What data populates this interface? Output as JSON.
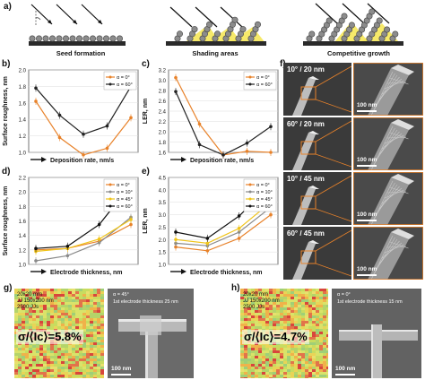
{
  "panels": {
    "a": "a)",
    "b": "b)",
    "c": "c)",
    "d": "d)",
    "e": "e)",
    "f": "f)",
    "g": "g)",
    "h": "h)"
  },
  "schematics": {
    "captions": [
      "Seed formation",
      "Shading areas",
      "Competitive growth"
    ],
    "alpha_label": "α"
  },
  "charts": {
    "b": {
      "type": "line",
      "ylabel": "Surface roughness, nm",
      "xlabel": "Deposition rate, nm/s",
      "ylim": [
        1.0,
        2.0
      ],
      "yticks": [
        "1.0",
        "1.2",
        "1.4",
        "1.6",
        "1.8",
        "2.0"
      ],
      "series": [
        {
          "name": "α = 0°",
          "color": "#e8822a",
          "values": [
            1.62,
            1.18,
            0.97,
            1.05,
            1.42
          ]
        },
        {
          "name": "α = 60°",
          "color": "#222222",
          "values": [
            1.78,
            1.45,
            1.22,
            1.32,
            1.8
          ]
        }
      ]
    },
    "c": {
      "type": "line",
      "ylabel": "LER, nm",
      "xlabel": "Deposition rate, nm/s",
      "ylim": [
        1.6,
        3.2
      ],
      "yticks": [
        "1.6",
        "1.8",
        "2.0",
        "2.2",
        "2.4",
        "2.6",
        "2.8",
        "3.0",
        "3.2"
      ],
      "series": [
        {
          "name": "α = 0°",
          "color": "#e8822a",
          "values": [
            3.05,
            2.15,
            1.55,
            1.62,
            1.6
          ]
        },
        {
          "name": "α = 60°",
          "color": "#222222",
          "values": [
            2.78,
            1.75,
            1.55,
            1.78,
            2.1
          ]
        }
      ]
    },
    "d": {
      "type": "line",
      "ylabel": "Surface roughness, nm",
      "xlabel": "Electrode thickness, nm",
      "ylim": [
        1.0,
        2.2
      ],
      "yticks": [
        "1.0",
        "1.2",
        "1.4",
        "1.6",
        "1.8",
        "2.0",
        "2.2"
      ],
      "series": [
        {
          "name": "α = 0°",
          "color": "#e8822a",
          "values": [
            1.2,
            1.22,
            1.32,
            1.55
          ]
        },
        {
          "name": "α = 10°",
          "color": "#8a8a8a",
          "values": [
            1.05,
            1.12,
            1.3,
            1.65
          ]
        },
        {
          "name": "α = 45°",
          "color": "#f0c419",
          "values": [
            1.18,
            1.22,
            1.35,
            1.62
          ]
        },
        {
          "name": "α = 60°",
          "color": "#111111",
          "values": [
            1.22,
            1.25,
            1.55,
            2.1
          ]
        }
      ]
    },
    "e": {
      "type": "line",
      "ylabel": "LER, nm",
      "xlabel": "Electrode thickness, nm",
      "ylim": [
        1.0,
        4.5
      ],
      "yticks": [
        "1.0",
        "1.5",
        "2.0",
        "2.5",
        "3.0",
        "3.5",
        "4.0",
        "4.5"
      ],
      "series": [
        {
          "name": "α = 0°",
          "color": "#e8822a",
          "values": [
            1.7,
            1.55,
            2.05,
            3.0
          ]
        },
        {
          "name": "α = 10°",
          "color": "#8a8a8a",
          "values": [
            1.85,
            1.75,
            2.3,
            3.3
          ]
        },
        {
          "name": "α = 45°",
          "color": "#f0c419",
          "values": [
            2.0,
            1.85,
            2.45,
            3.5
          ]
        },
        {
          "name": "α = 60°",
          "color": "#111111",
          "values": [
            2.3,
            2.05,
            2.95,
            4.2
          ]
        }
      ]
    }
  },
  "sem_f": {
    "labels": [
      "10° / 20 nm",
      "60° / 20 nm",
      "10° / 45 nm",
      "60° / 45 nm"
    ],
    "scale": "100 nm"
  },
  "panel_g": {
    "heat_lines": [
      "20x20 mm",
      "JJ 150x200 nm",
      "2500 JJs"
    ],
    "sigma": "σ/⟨Ic⟩=5.8%",
    "sem_lines": [
      "α = 45°",
      "1st electrode thickness 25 nm"
    ],
    "scale": "100 nm"
  },
  "panel_h": {
    "heat_lines": [
      "20x20 mm",
      "JJ 150x200 nm",
      "2500 JJs"
    ],
    "sigma": "σ/⟨Ic⟩=4.7%",
    "sem_lines": [
      "α = 0°",
      "1st electrode thickness 15 nm"
    ],
    "scale": "100 nm"
  }
}
